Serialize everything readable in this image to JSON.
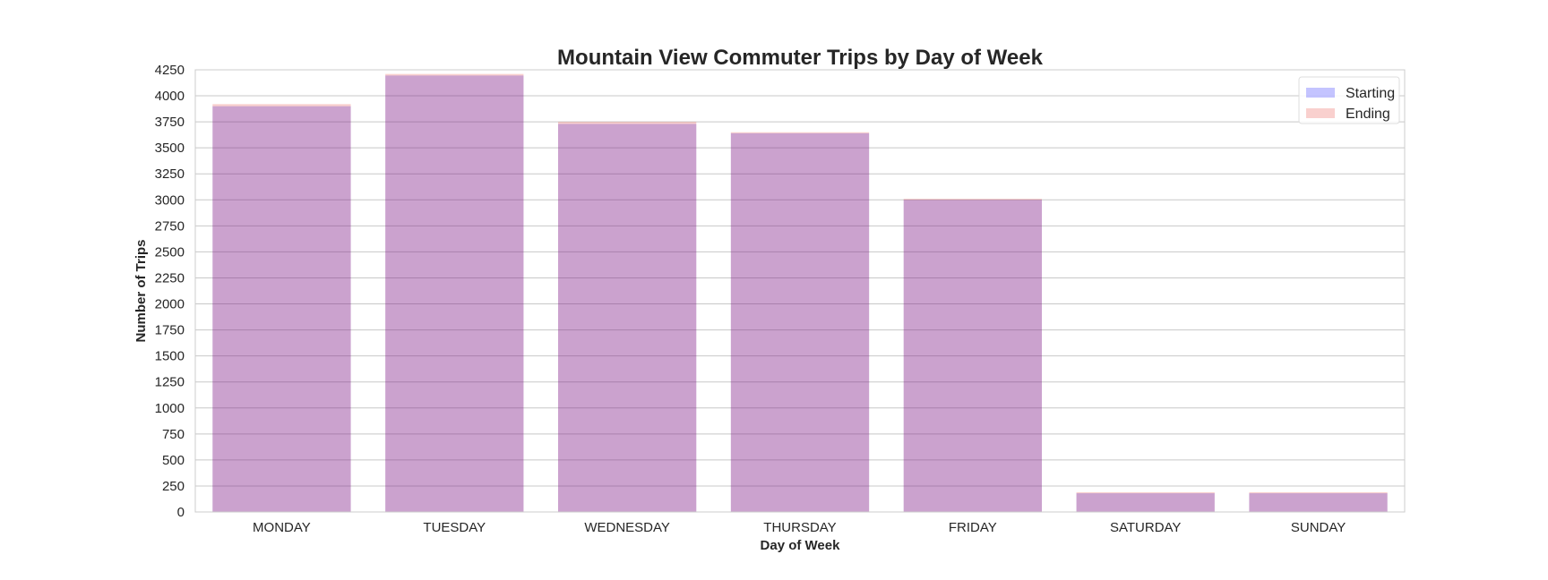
{
  "chart_data": {
    "type": "bar",
    "title": "Mountain View Commuter Trips by Day of Week",
    "xlabel": "Day of Week",
    "ylabel": "Number of Trips",
    "categories": [
      "MONDAY",
      "TUESDAY",
      "WEDNESDAY",
      "THURSDAY",
      "FRIDAY",
      "SATURDAY",
      "SUNDAY"
    ],
    "series": [
      {
        "name": "Starting",
        "color": "#0000ff",
        "values": [
          3900,
          4195,
          3730,
          3640,
          3000,
          180,
          180
        ]
      },
      {
        "name": "Ending",
        "color": "#e6332a",
        "values": [
          3920,
          4210,
          3750,
          3650,
          3010,
          190,
          190
        ]
      }
    ],
    "ylim": [
      0,
      4250
    ],
    "yticks": [
      0,
      250,
      500,
      750,
      1000,
      1250,
      1500,
      1750,
      2000,
      2250,
      2500,
      2750,
      3000,
      3250,
      3500,
      3750,
      4000,
      4250
    ],
    "grid": true,
    "legend_position": "top-right",
    "bar_color_overlap": "#cc9bc1"
  }
}
